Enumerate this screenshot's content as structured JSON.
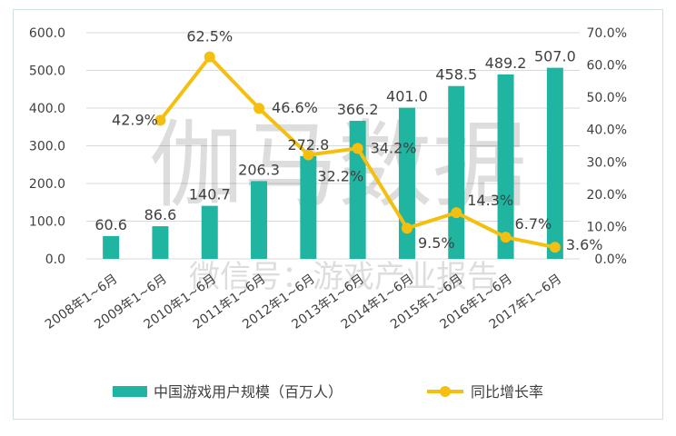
{
  "chart_data": {
    "type": "bar+line",
    "categories": [
      "2008年1~6月",
      "2009年1~6月",
      "2010年1~6月",
      "2011年1~6月",
      "2012年1~6月",
      "2013年1~6月",
      "2014年1~6月",
      "2015年1~6月",
      "2016年1~6月",
      "2017年1~6月"
    ],
    "series": [
      {
        "name": "中国游戏用户规模（百万人）",
        "type": "bar",
        "axis": "left",
        "color": "#1fb5a0",
        "values": [
          60.6,
          86.6,
          140.7,
          206.3,
          272.8,
          366.2,
          401.0,
          458.5,
          489.2,
          507.0
        ],
        "labels": [
          "60.6",
          "86.6",
          "140.7",
          "206.3",
          "272.8",
          "366.2",
          "401.0",
          "458.5",
          "489.2",
          "507.0"
        ]
      },
      {
        "name": "同比增长率",
        "type": "line",
        "axis": "right",
        "color": "#f5bf0f",
        "values": [
          null,
          42.9,
          62.5,
          46.6,
          32.2,
          34.2,
          9.5,
          14.3,
          6.7,
          3.6
        ],
        "labels": [
          null,
          "42.9%",
          "62.5%",
          "46.6%",
          "32.2%",
          "34.2%",
          "9.5%",
          "14.3%",
          "6.7%",
          "3.6%"
        ]
      }
    ],
    "y_left": {
      "ylim": [
        0,
        600
      ],
      "ticks": [
        "0.0",
        "100.0",
        "200.0",
        "300.0",
        "400.0",
        "500.0",
        "600.0"
      ]
    },
    "y_right": {
      "ylim": [
        0,
        70
      ],
      "ticks": [
        "0.0%",
        "10.0%",
        "20.0%",
        "30.0%",
        "40.0%",
        "50.0%",
        "60.0%",
        "70.0%"
      ]
    },
    "legend_position": "bottom",
    "grid": true
  },
  "watermark": {
    "main": "伽马数据",
    "sub": "微信号：游戏产业报告"
  }
}
